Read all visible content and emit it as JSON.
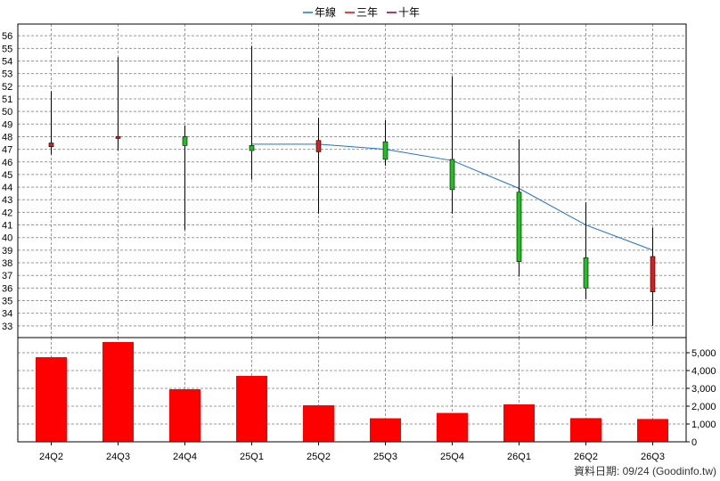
{
  "chart_data": {
    "type": "candlestick-with-volume",
    "legend": [
      {
        "name": "年線",
        "color": "#1f6fd6"
      },
      {
        "name": "三年",
        "color": "#e00000"
      },
      {
        "name": "十年",
        "color": "#8b0032"
      }
    ],
    "categories": [
      "24Q2",
      "24Q3",
      "24Q4",
      "25Q1",
      "25Q2",
      "25Q3",
      "25Q4",
      "26Q1",
      "26Q2",
      "26Q3"
    ],
    "price_axis": {
      "min": 33,
      "max": 56,
      "ticks": [
        33,
        34,
        35,
        36,
        37,
        38,
        39,
        40,
        41,
        42,
        43,
        44,
        45,
        46,
        47,
        48,
        49,
        50,
        51,
        52,
        53,
        54,
        55,
        56
      ]
    },
    "candles": [
      {
        "open": 47.2,
        "high": 51.6,
        "low": 46.6,
        "close": 47.5
      },
      {
        "open": 47.9,
        "high": 54.3,
        "low": 46.9,
        "close": 48.0
      },
      {
        "open": 48.0,
        "high": 48.9,
        "low": 40.6,
        "close": 47.3
      },
      {
        "open": 47.3,
        "high": 55.2,
        "low": 44.6,
        "close": 46.9
      },
      {
        "open": 46.8,
        "high": 49.5,
        "low": 41.9,
        "close": 47.7
      },
      {
        "open": 47.6,
        "high": 49.3,
        "low": 45.7,
        "close": 46.2
      },
      {
        "open": 46.2,
        "high": 52.8,
        "low": 41.9,
        "close": 43.8
      },
      {
        "open": 43.6,
        "high": 47.8,
        "low": 36.9,
        "close": 38.1
      },
      {
        "open": 38.4,
        "high": 42.8,
        "low": 35.1,
        "close": 36.0
      },
      {
        "open": 35.7,
        "high": 40.8,
        "low": 33.0,
        "close": 38.5
      }
    ],
    "annual_ma": {
      "name": "年線",
      "start_index": 3,
      "values": [
        47.4,
        47.4,
        47.0,
        46.1,
        43.9,
        41.0,
        39.0
      ]
    },
    "volume_axis": {
      "min": 0,
      "max": 6000,
      "ticks": [
        0,
        1000,
        2000,
        3000,
        4000,
        5000
      ],
      "tick_labels": [
        "0",
        "1,000",
        "2,000",
        "3,000",
        "4,000",
        "5,000"
      ]
    },
    "volumes": [
      4750,
      5600,
      2950,
      3700,
      2050,
      1320,
      1620,
      2100,
      1330,
      1280
    ]
  },
  "footer": {
    "text": "資料日期: 09/24  (Goodinfo.tw)"
  },
  "colors": {
    "up_candle": "#d42020",
    "down_candle": "#20c020",
    "volume_bar": "#ff0000",
    "grid": "#999999",
    "ma_line": "#1f6fd6"
  }
}
